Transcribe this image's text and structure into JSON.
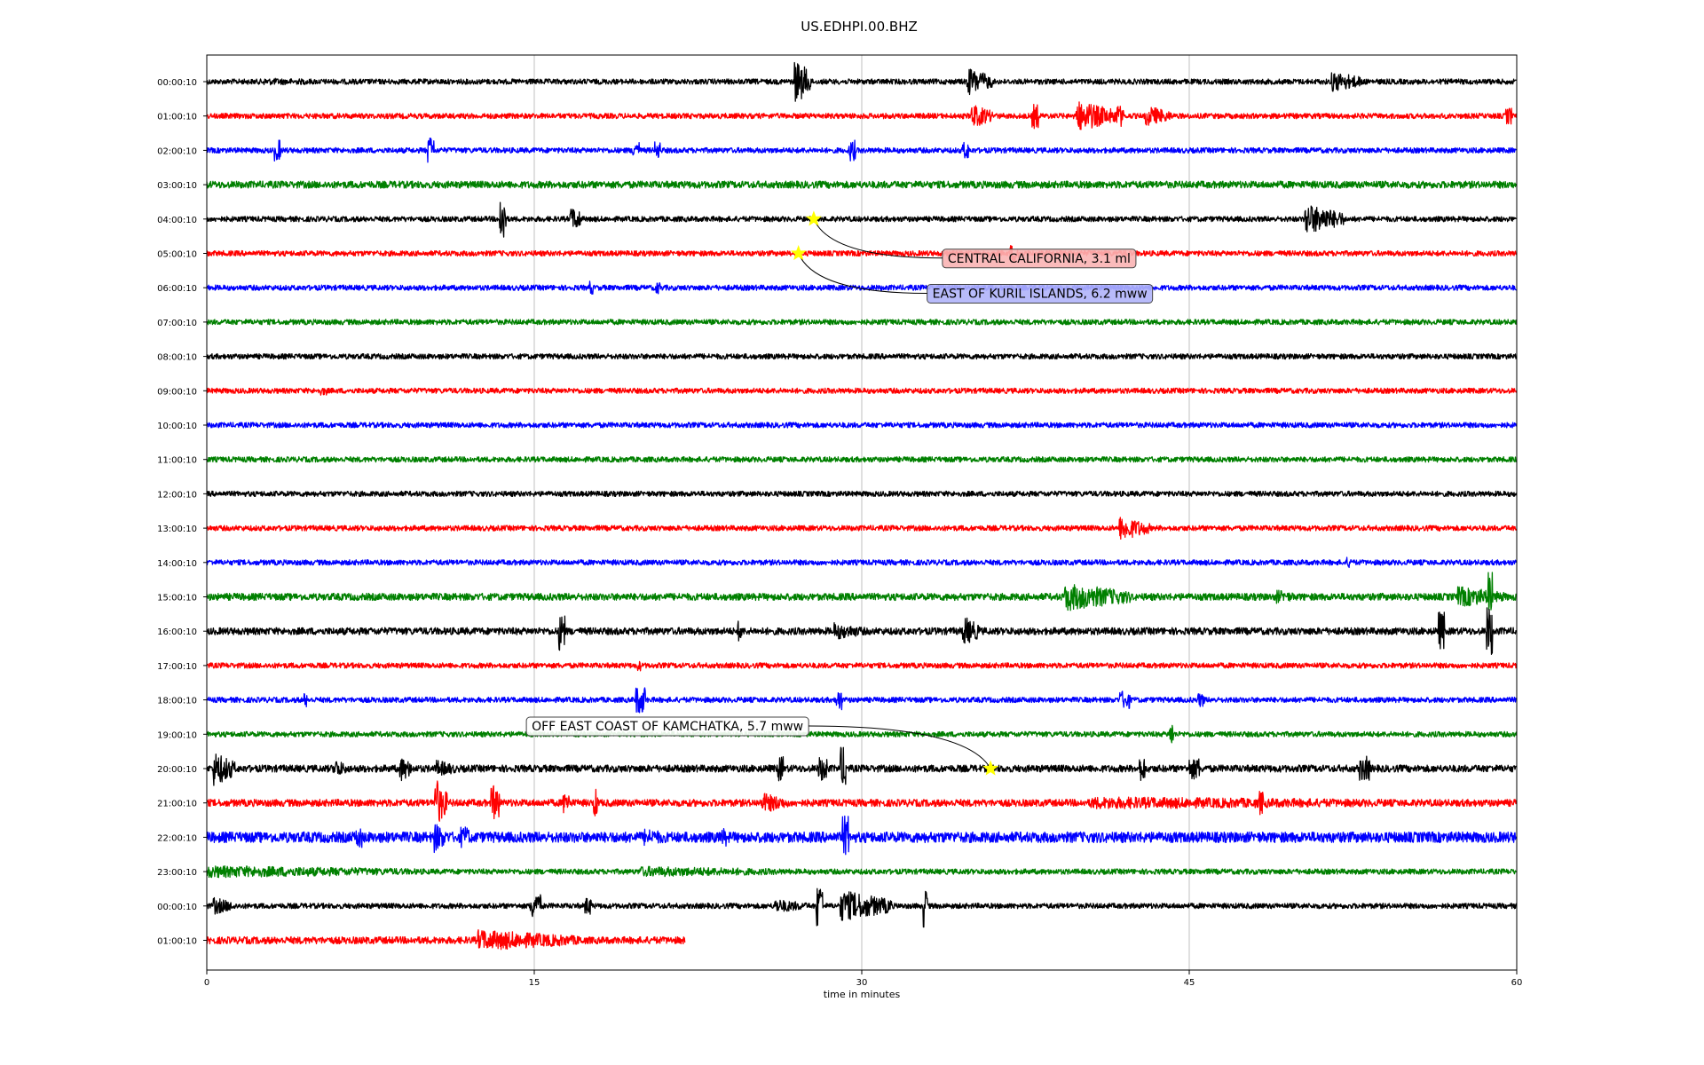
{
  "chart_data": {
    "type": "line",
    "title": "US.EDHPI.00.BHZ",
    "xlabel": "time in minutes",
    "ylabel": "",
    "xlim": [
      0,
      60
    ],
    "xticks": [
      0,
      15,
      30,
      45,
      60
    ],
    "xtick_labels": [
      "0",
      "15",
      "30",
      "45",
      "60"
    ],
    "grid": "vertical",
    "legend": "none",
    "trace_colors": [
      "#000000",
      "#ff0000",
      "#0000ff",
      "#008000"
    ],
    "rows": [
      {
        "label": "00:00:10",
        "color": "#000000",
        "end": 60,
        "amp": 3,
        "events": [
          {
            "t": 2.5,
            "w": 6.5,
            "a": 4
          },
          {
            "t": 26.9,
            "w": 0.8,
            "a": 26
          },
          {
            "t": 34.8,
            "w": 1.2,
            "a": 16
          },
          {
            "t": 51.5,
            "w": 1.5,
            "a": 12
          }
        ]
      },
      {
        "label": "01:00:10",
        "color": "#ff0000",
        "end": 60,
        "amp": 3,
        "events": [
          {
            "t": 35.0,
            "w": 1.0,
            "a": 14
          },
          {
            "t": 37.8,
            "w": 0.3,
            "a": 14
          },
          {
            "t": 39.8,
            "w": 1.8,
            "a": 18
          },
          {
            "t": 41.6,
            "w": 0.4,
            "a": 12
          },
          {
            "t": 43.0,
            "w": 1.2,
            "a": 12
          },
          {
            "t": 59.5,
            "w": 0.3,
            "a": 10
          }
        ]
      },
      {
        "label": "02:00:10",
        "color": "#0000ff",
        "end": 60,
        "amp": 3,
        "events": [
          {
            "t": 3.1,
            "w": 0.3,
            "a": 12
          },
          {
            "t": 10.1,
            "w": 0.3,
            "a": 16
          },
          {
            "t": 19.5,
            "w": 0.3,
            "a": 10
          },
          {
            "t": 20.5,
            "w": 0.3,
            "a": 10
          },
          {
            "t": 29.4,
            "w": 0.3,
            "a": 12
          },
          {
            "t": 34.6,
            "w": 0.3,
            "a": 10
          }
        ]
      },
      {
        "label": "03:00:10",
        "color": "#008000",
        "end": 60,
        "amp": 4,
        "events": []
      },
      {
        "label": "04:00:10",
        "color": "#000000",
        "end": 60,
        "amp": 3,
        "events": [
          {
            "t": 13.4,
            "w": 0.3,
            "a": 28
          },
          {
            "t": 16.6,
            "w": 0.5,
            "a": 12
          },
          {
            "t": 50.3,
            "w": 1.8,
            "a": 18
          }
        ]
      },
      {
        "label": "05:00:10",
        "color": "#ff0000",
        "end": 60,
        "amp": 3,
        "events": [
          {
            "t": 36.8,
            "w": 0.4,
            "a": 10
          }
        ]
      },
      {
        "label": "06:00:10",
        "color": "#0000ff",
        "end": 60,
        "amp": 3,
        "events": [
          {
            "t": 17.5,
            "w": 0.2,
            "a": 8
          },
          {
            "t": 20.5,
            "w": 0.3,
            "a": 7
          }
        ]
      },
      {
        "label": "07:00:10",
        "color": "#008000",
        "end": 60,
        "amp": 3,
        "events": []
      },
      {
        "label": "08:00:10",
        "color": "#000000",
        "end": 60,
        "amp": 3,
        "events": []
      },
      {
        "label": "09:00:10",
        "color": "#ff0000",
        "end": 60,
        "amp": 3,
        "events": [
          {
            "t": 5.2,
            "w": 0.3,
            "a": 5
          }
        ]
      },
      {
        "label": "10:00:10",
        "color": "#0000ff",
        "end": 60,
        "amp": 3,
        "events": []
      },
      {
        "label": "11:00:10",
        "color": "#008000",
        "end": 60,
        "amp": 3,
        "events": []
      },
      {
        "label": "12:00:10",
        "color": "#000000",
        "end": 60,
        "amp": 3,
        "events": []
      },
      {
        "label": "13:00:10",
        "color": "#ff0000",
        "end": 60,
        "amp": 3,
        "events": [
          {
            "t": 41.8,
            "w": 1.4,
            "a": 14
          }
        ]
      },
      {
        "label": "14:00:10",
        "color": "#0000ff",
        "end": 60,
        "amp": 3,
        "events": [
          {
            "t": 52.2,
            "w": 0.3,
            "a": 6
          }
        ]
      },
      {
        "label": "15:00:10",
        "color": "#008000",
        "end": 60,
        "amp": 4,
        "events": [
          {
            "t": 39.3,
            "w": 3.0,
            "a": 16
          },
          {
            "t": 49.0,
            "w": 1.0,
            "a": 8
          },
          {
            "t": 57.3,
            "w": 2.2,
            "a": 12
          },
          {
            "t": 58.7,
            "w": 0.2,
            "a": 28
          }
        ]
      },
      {
        "label": "16:00:10",
        "color": "#000000",
        "end": 60,
        "amp": 4,
        "events": [
          {
            "t": 16.1,
            "w": 0.3,
            "a": 22
          },
          {
            "t": 24.3,
            "w": 0.2,
            "a": 12
          },
          {
            "t": 28.7,
            "w": 1.5,
            "a": 10
          },
          {
            "t": 34.6,
            "w": 0.8,
            "a": 18
          },
          {
            "t": 56.4,
            "w": 0.3,
            "a": 22
          },
          {
            "t": 58.6,
            "w": 0.3,
            "a": 28
          }
        ]
      },
      {
        "label": "17:00:10",
        "color": "#ff0000",
        "end": 60,
        "amp": 3,
        "events": [
          {
            "t": 19.7,
            "w": 0.2,
            "a": 6
          }
        ]
      },
      {
        "label": "18:00:10",
        "color": "#0000ff",
        "end": 60,
        "amp": 3,
        "events": [
          {
            "t": 4.4,
            "w": 0.2,
            "a": 8
          },
          {
            "t": 19.6,
            "w": 0.5,
            "a": 16
          },
          {
            "t": 28.8,
            "w": 0.3,
            "a": 12
          },
          {
            "t": 41.8,
            "w": 0.5,
            "a": 10
          },
          {
            "t": 45.4,
            "w": 0.3,
            "a": 8
          }
        ]
      },
      {
        "label": "19:00:10",
        "color": "#008000",
        "end": 60,
        "amp": 3,
        "events": [
          {
            "t": 44.1,
            "w": 0.2,
            "a": 14
          }
        ]
      },
      {
        "label": "20:00:10",
        "color": "#000000",
        "end": 60,
        "amp": 4,
        "events": [
          {
            "t": 0.3,
            "w": 1.0,
            "a": 20
          },
          {
            "t": 5.8,
            "w": 0.6,
            "a": 12
          },
          {
            "t": 8.8,
            "w": 0.6,
            "a": 16
          },
          {
            "t": 10.5,
            "w": 1.0,
            "a": 10
          },
          {
            "t": 26.1,
            "w": 0.3,
            "a": 14
          },
          {
            "t": 28.0,
            "w": 0.4,
            "a": 14
          },
          {
            "t": 29.0,
            "w": 0.3,
            "a": 24
          },
          {
            "t": 42.7,
            "w": 0.3,
            "a": 14
          },
          {
            "t": 45.0,
            "w": 0.5,
            "a": 12
          },
          {
            "t": 52.8,
            "w": 0.5,
            "a": 14
          }
        ]
      },
      {
        "label": "21:00:10",
        "color": "#ff0000",
        "end": 60,
        "amp": 4,
        "events": [
          {
            "t": 10.4,
            "w": 0.6,
            "a": 30
          },
          {
            "t": 13.0,
            "w": 0.4,
            "a": 20
          },
          {
            "t": 16.3,
            "w": 0.3,
            "a": 12
          },
          {
            "t": 17.7,
            "w": 0.2,
            "a": 16
          },
          {
            "t": 25.4,
            "w": 1.2,
            "a": 12
          },
          {
            "t": 40.5,
            "w": 19.5,
            "a": 7
          },
          {
            "t": 48.2,
            "w": 0.2,
            "a": 14
          }
        ]
      },
      {
        "label": "22:00:10",
        "color": "#0000ff",
        "end": 60,
        "amp": 6,
        "events": [
          {
            "t": 6.8,
            "w": 0.3,
            "a": 12
          },
          {
            "t": 10.4,
            "w": 0.6,
            "a": 18
          },
          {
            "t": 11.6,
            "w": 0.4,
            "a": 12
          },
          {
            "t": 20.0,
            "w": 1.5,
            "a": 10
          },
          {
            "t": 23.5,
            "w": 0.4,
            "a": 10
          },
          {
            "t": 29.1,
            "w": 0.3,
            "a": 24
          }
        ]
      },
      {
        "label": "23:00:10",
        "color": "#008000",
        "end": 60,
        "amp": 3,
        "events": [
          {
            "t": 0.0,
            "w": 10.9,
            "a": 7
          },
          {
            "t": 19.8,
            "w": 8.5,
            "a": 6
          }
        ]
      },
      {
        "label": "00:00:10",
        "color": "#000000",
        "end": 60,
        "amp": 3,
        "events": [
          {
            "t": 0.3,
            "w": 1.0,
            "a": 10
          },
          {
            "t": 14.8,
            "w": 0.5,
            "a": 14
          },
          {
            "t": 17.3,
            "w": 0.3,
            "a": 10
          },
          {
            "t": 26.0,
            "w": 1.6,
            "a": 8
          },
          {
            "t": 27.9,
            "w": 0.3,
            "a": 26
          },
          {
            "t": 29.0,
            "w": 2.4,
            "a": 18
          },
          {
            "t": 32.8,
            "w": 0.2,
            "a": 26
          }
        ]
      },
      {
        "label": "01:00:10",
        "color": "#ff0000",
        "end": 21.9,
        "amp": 4,
        "events": [
          {
            "t": 12.4,
            "w": 4.8,
            "a": 12
          }
        ]
      }
    ],
    "events": [
      {
        "label": "CENTRAL CALIFORNIA, 3.1 ml",
        "row": 4,
        "t": 27.8,
        "box_fill": "#fab4b4"
      },
      {
        "label": "EAST OF KURIL ISLANDS, 6.2 mww",
        "row": 5,
        "t": 27.1,
        "box_fill": "#b0b4fa"
      },
      {
        "label": "OFF EAST COAST OF KAMCHATKA, 5.7 mww",
        "row": 20,
        "t": 35.9,
        "box_fill": "#ffffff"
      }
    ],
    "marker_color": "#ffff00"
  }
}
